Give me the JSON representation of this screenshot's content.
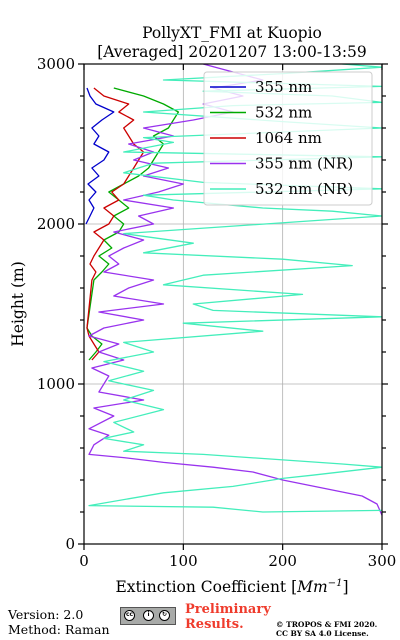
{
  "chart_data": {
    "type": "line",
    "title": "PollyXT_FMI at Kuopio",
    "subtitle": "[Averaged] 20201207 13:00-13:59",
    "xlabel": "Extinction Coefficient [",
    "xlabel_unit": "Mm",
    "xlabel_exp": "−1",
    "xlabel_end": "]",
    "ylabel": "Height (m)",
    "xlim": [
      0,
      300
    ],
    "ylim": [
      0,
      3000
    ],
    "x_ticks": [
      "0",
      "100",
      "200",
      "300"
    ],
    "y_ticks": [
      "0",
      "1000",
      "2000",
      "3000"
    ],
    "grid": true,
    "legend_position": "top-right",
    "series": [
      {
        "name": "355 nm",
        "color": "#0000cc",
        "points": [
          [
            2,
            2000
          ],
          [
            6,
            2050
          ],
          [
            10,
            2100
          ],
          [
            5,
            2150
          ],
          [
            12,
            2200
          ],
          [
            4,
            2250
          ],
          [
            15,
            2300
          ],
          [
            8,
            2350
          ],
          [
            20,
            2400
          ],
          [
            25,
            2450
          ],
          [
            10,
            2500
          ],
          [
            15,
            2550
          ],
          [
            8,
            2600
          ],
          [
            18,
            2650
          ],
          [
            30,
            2700
          ],
          [
            12,
            2750
          ],
          [
            6,
            2800
          ],
          [
            3,
            2850
          ]
        ]
      },
      {
        "name": "532 nm",
        "color": "#00aa00",
        "points": [
          [
            5,
            1150
          ],
          [
            12,
            1200
          ],
          [
            18,
            1250
          ],
          [
            8,
            1300
          ],
          [
            3,
            1350
          ],
          [
            10,
            1650
          ],
          [
            18,
            1700
          ],
          [
            25,
            1750
          ],
          [
            15,
            1800
          ],
          [
            28,
            1850
          ],
          [
            20,
            1900
          ],
          [
            35,
            1950
          ],
          [
            40,
            2000
          ],
          [
            30,
            2050
          ],
          [
            45,
            2100
          ],
          [
            35,
            2150
          ],
          [
            25,
            2200
          ],
          [
            40,
            2250
          ],
          [
            55,
            2300
          ],
          [
            65,
            2350
          ],
          [
            70,
            2400
          ],
          [
            75,
            2450
          ],
          [
            80,
            2500
          ],
          [
            70,
            2550
          ],
          [
            85,
            2600
          ],
          [
            90,
            2650
          ],
          [
            95,
            2700
          ],
          [
            80,
            2750
          ],
          [
            60,
            2800
          ],
          [
            30,
            2850
          ]
        ]
      },
      {
        "name": "1064 nm",
        "color": "#cc0000",
        "points": [
          [
            8,
            1150
          ],
          [
            15,
            1200
          ],
          [
            10,
            1250
          ],
          [
            5,
            1300
          ],
          [
            3,
            1350
          ],
          [
            8,
            1650
          ],
          [
            12,
            1700
          ],
          [
            6,
            1750
          ],
          [
            10,
            1800
          ],
          [
            15,
            1850
          ],
          [
            20,
            1900
          ],
          [
            10,
            1950
          ],
          [
            25,
            2000
          ],
          [
            30,
            2050
          ],
          [
            20,
            2100
          ],
          [
            35,
            2150
          ],
          [
            28,
            2200
          ],
          [
            40,
            2250
          ],
          [
            45,
            2300
          ],
          [
            50,
            2350
          ],
          [
            55,
            2400
          ],
          [
            60,
            2450
          ],
          [
            50,
            2500
          ],
          [
            45,
            2550
          ],
          [
            40,
            2600
          ],
          [
            50,
            2650
          ],
          [
            35,
            2700
          ],
          [
            45,
            2750
          ],
          [
            20,
            2800
          ],
          [
            10,
            2850
          ]
        ]
      },
      {
        "name": "355 nm (NR)",
        "color": "#9933ee",
        "points": [
          [
            300,
            180
          ],
          [
            295,
            250
          ],
          [
            280,
            300
          ],
          [
            240,
            350
          ],
          [
            200,
            400
          ],
          [
            170,
            450
          ],
          [
            130,
            480
          ],
          [
            80,
            510
          ],
          [
            40,
            540
          ],
          [
            5,
            560
          ],
          [
            10,
            620
          ],
          [
            25,
            680
          ],
          [
            5,
            720
          ],
          [
            30,
            800
          ],
          [
            10,
            850
          ],
          [
            60,
            900
          ],
          [
            15,
            950
          ],
          [
            25,
            1050
          ],
          [
            8,
            1100
          ],
          [
            40,
            1150
          ],
          [
            15,
            1200
          ],
          [
            35,
            1250
          ],
          [
            5,
            1300
          ],
          [
            20,
            1350
          ],
          [
            60,
            1400
          ],
          [
            15,
            1450
          ],
          [
            80,
            1500
          ],
          [
            30,
            1550
          ],
          [
            45,
            1600
          ],
          [
            70,
            1650
          ],
          [
            20,
            1700
          ],
          [
            35,
            1750
          ],
          [
            25,
            1800
          ],
          [
            40,
            1850
          ],
          [
            60,
            1900
          ],
          [
            30,
            1950
          ],
          [
            70,
            2000
          ],
          [
            55,
            2050
          ],
          [
            90,
            2100
          ],
          [
            40,
            2150
          ],
          [
            75,
            2200
          ],
          [
            100,
            2250
          ],
          [
            60,
            2300
          ],
          [
            85,
            2350
          ],
          [
            50,
            2400
          ],
          [
            70,
            2450
          ],
          [
            45,
            2500
          ],
          [
            90,
            2550
          ],
          [
            60,
            2600
          ],
          [
            110,
            2650
          ],
          [
            150,
            2700
          ],
          [
            120,
            2750
          ],
          [
            160,
            2800
          ],
          [
            130,
            2850
          ],
          [
            180,
            2900
          ],
          [
            150,
            2950
          ],
          [
            120,
            3000
          ]
        ]
      },
      {
        "name": "532 nm (NR)",
        "color": "#44eebb",
        "points": [
          [
            300,
            210
          ],
          [
            180,
            200
          ],
          [
            130,
            230
          ],
          [
            5,
            240
          ],
          [
            80,
            320
          ],
          [
            150,
            360
          ],
          [
            200,
            410
          ],
          [
            230,
            430
          ],
          [
            300,
            480
          ],
          [
            260,
            500
          ],
          [
            120,
            560
          ],
          [
            40,
            580
          ],
          [
            60,
            620
          ],
          [
            20,
            660
          ],
          [
            50,
            700
          ],
          [
            30,
            760
          ],
          [
            80,
            840
          ],
          [
            40,
            900
          ],
          [
            70,
            960
          ],
          [
            25,
            1020
          ],
          [
            60,
            1080
          ],
          [
            20,
            1140
          ],
          [
            70,
            1200
          ],
          [
            40,
            1260
          ],
          [
            180,
            1330
          ],
          [
            100,
            1380
          ],
          [
            300,
            1420
          ],
          [
            130,
            1460
          ],
          [
            110,
            1500
          ],
          [
            220,
            1560
          ],
          [
            80,
            1620
          ],
          [
            120,
            1680
          ],
          [
            270,
            1740
          ],
          [
            200,
            1780
          ],
          [
            60,
            1820
          ],
          [
            110,
            1880
          ],
          [
            40,
            1940
          ],
          [
            300,
            2050
          ],
          [
            250,
            2080
          ],
          [
            180,
            2100
          ],
          [
            90,
            2150
          ],
          [
            60,
            2180
          ],
          [
            300,
            2220
          ],
          [
            120,
            2260
          ],
          [
            40,
            2320
          ],
          [
            70,
            2380
          ],
          [
            300,
            2420
          ],
          [
            40,
            2450
          ],
          [
            90,
            2510
          ],
          [
            60,
            2540
          ],
          [
            300,
            2600
          ],
          [
            200,
            2640
          ],
          [
            60,
            2700
          ],
          [
            150,
            2740
          ],
          [
            300,
            2760
          ],
          [
            250,
            2800
          ],
          [
            120,
            2830
          ],
          [
            300,
            2860
          ],
          [
            80,
            2900
          ],
          [
            200,
            2940
          ],
          [
            300,
            2980
          ],
          [
            260,
            3000
          ]
        ]
      }
    ]
  },
  "footer": {
    "version": "Version: 2.0",
    "method": "Method: Raman",
    "preliminary_line1": "Preliminary",
    "preliminary_line2": "Results.",
    "copyright_line1": "© TROPOS & FMI 2020.",
    "copyright_line2": "CC BY SA 4.0 License."
  }
}
